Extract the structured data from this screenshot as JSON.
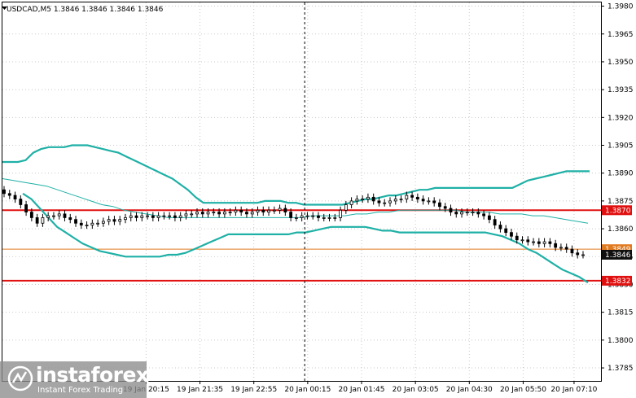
{
  "header": {
    "symbol_line": "USDCAD,M5  1.3846 1.3846 1.3846 1.3846"
  },
  "watermark": {
    "brand": "instaforex",
    "tagline": "Instant Forex Trading"
  },
  "colors": {
    "band": "#1fb0a6",
    "mid": "#1fb0a6",
    "level_line": "#e01010",
    "price_line": "#e07a20",
    "price_tag_bg": "#101010",
    "candles": "#000000"
  },
  "chart_data": {
    "type": "candlestick",
    "symbol": "USDCAD",
    "timeframe": "M5",
    "ylim": [
      1.3778,
      1.3982
    ],
    "y_ticks": [
      "1.3980",
      "1.3965",
      "1.3950",
      "1.3935",
      "1.3920",
      "1.3905",
      "1.3890",
      "1.3875",
      "1.3860",
      "1.3845",
      "1.3830",
      "1.3815",
      "1.3800",
      "1.3785"
    ],
    "y_tick_values": [
      1.398,
      1.3965,
      1.395,
      1.3935,
      1.392,
      1.3905,
      1.389,
      1.3875,
      1.386,
      1.3845,
      1.383,
      1.3815,
      1.38,
      1.3785
    ],
    "x_ticks": [
      "19 Jan 20:15",
      "19 Jan 21:35",
      "19 Jan 22:55",
      "20 Jan 00:15",
      "20 Jan 01:45",
      "20 Jan 03:05",
      "20 Jan 04:30",
      "20 Jan 05:50",
      "20 Jan 07:10"
    ],
    "x_tick_pos": [
      0.24,
      0.33,
      0.42,
      0.51,
      0.6,
      0.69,
      0.78,
      0.87,
      0.955
    ],
    "levels": [
      {
        "value": 1.387,
        "label": "1.3870",
        "kind": "resistance"
      },
      {
        "value": 1.3832,
        "label": "1.3832",
        "kind": "support"
      }
    ],
    "price_line": {
      "value": 1.3849,
      "label": "1.3849"
    },
    "current_price": {
      "value": 1.3846,
      "label": "1.3846"
    },
    "vertical_separator_pos": 0.505,
    "close": [
      1.3879,
      1.3878,
      1.3876,
      1.3873,
      1.3869,
      1.3866,
      1.3863,
      1.3866,
      1.3867,
      1.3867,
      1.3868,
      1.3866,
      1.3865,
      1.3863,
      1.3862,
      1.3862,
      1.3863,
      1.3863,
      1.3864,
      1.3865,
      1.3864,
      1.3865,
      1.3866,
      1.3867,
      1.3866,
      1.3867,
      1.3867,
      1.3866,
      1.3867,
      1.3867,
      1.3867,
      1.3866,
      1.3867,
      1.3868,
      1.3868,
      1.3869,
      1.3868,
      1.3869,
      1.3869,
      1.3868,
      1.3869,
      1.3869,
      1.387,
      1.3869,
      1.3868,
      1.3869,
      1.387,
      1.3869,
      1.387,
      1.387,
      1.3871,
      1.3869,
      1.3866,
      1.3866,
      1.3867,
      1.3867,
      1.3867,
      1.3866,
      1.3866,
      1.3866,
      1.3866,
      1.387,
      1.3873,
      1.3875,
      1.3876,
      1.3876,
      1.3877,
      1.3875,
      1.3874,
      1.3874,
      1.3875,
      1.3876,
      1.3876,
      1.3878,
      1.3877,
      1.3876,
      1.3875,
      1.3875,
      1.3874,
      1.3872,
      1.3871,
      1.3869,
      1.3868,
      1.3869,
      1.3869,
      1.3869,
      1.3868,
      1.3867,
      1.3865,
      1.3862,
      1.386,
      1.3858,
      1.3856,
      1.3854,
      1.3854,
      1.3853,
      1.3853,
      1.3852,
      1.3853,
      1.3852,
      1.385,
      1.385,
      1.3849,
      1.3847,
      1.3846,
      1.3846
    ],
    "upper_band": [
      1.3896,
      1.3896,
      1.3896,
      1.3897,
      1.3901,
      1.3903,
      1.3904,
      1.3904,
      1.3904,
      1.3905,
      1.3905,
      1.3905,
      1.3904,
      1.3903,
      1.3902,
      1.3901,
      1.3899,
      1.3897,
      1.3895,
      1.3893,
      1.3891,
      1.3889,
      1.3887,
      1.3884,
      1.3881,
      1.3877,
      1.3874,
      1.3874,
      1.3874,
      1.3874,
      1.3874,
      1.3874,
      1.3874,
      1.3874,
      1.3875,
      1.3875,
      1.3875,
      1.3874,
      1.3874,
      1.3873,
      1.3873,
      1.3873,
      1.3873,
      1.3873,
      1.3873,
      1.3874,
      1.3875,
      1.3876,
      1.3876,
      1.3877,
      1.3878,
      1.3878,
      1.3879,
      1.388,
      1.3881,
      1.3881,
      1.3882,
      1.3882,
      1.3882,
      1.3882,
      1.3882,
      1.3882,
      1.3882,
      1.3882,
      1.3882,
      1.3882,
      1.3882,
      1.3884,
      1.3886,
      1.3887,
      1.3888,
      1.3889,
      1.389,
      1.3891,
      1.3891,
      1.3891,
      1.3891
    ],
    "lower_band": [
      1.3879,
      1.3876,
      1.3871,
      1.3866,
      1.3861,
      1.3858,
      1.3855,
      1.3852,
      1.385,
      1.3848,
      1.3847,
      1.3846,
      1.3845,
      1.3845,
      1.3845,
      1.3845,
      1.3845,
      1.3846,
      1.3846,
      1.3847,
      1.3849,
      1.3851,
      1.3853,
      1.3855,
      1.3857,
      1.3857,
      1.3857,
      1.3857,
      1.3857,
      1.3857,
      1.3857,
      1.3857,
      1.3858,
      1.3858,
      1.3859,
      1.386,
      1.3861,
      1.3861,
      1.3861,
      1.3861,
      1.3861,
      1.386,
      1.3859,
      1.3859,
      1.3858,
      1.3858,
      1.3858,
      1.3858,
      1.3858,
      1.3858,
      1.3858,
      1.3858,
      1.3858,
      1.3858,
      1.3858,
      1.3857,
      1.3856,
      1.3854,
      1.3852,
      1.3849,
      1.3847,
      1.3844,
      1.3841,
      1.3838,
      1.3836,
      1.3834,
      1.3831
    ],
    "middle_band": [
      1.3887,
      1.3886,
      1.3885,
      1.3884,
      1.3883,
      1.3881,
      1.3879,
      1.3877,
      1.3875,
      1.3873,
      1.3872,
      1.387,
      1.3869,
      1.3868,
      1.3867,
      1.3866,
      1.3866,
      1.3866,
      1.3866,
      1.3866,
      1.3866,
      1.3866,
      1.3866,
      1.3866,
      1.3866,
      1.3866,
      1.3866,
      1.3866,
      1.3867,
      1.3867,
      1.3867,
      1.3867,
      1.3868,
      1.3868,
      1.3869,
      1.3869,
      1.387,
      1.387,
      1.387,
      1.387,
      1.387,
      1.387,
      1.3869,
      1.3869,
      1.3869,
      1.3868,
      1.3868,
      1.3868,
      1.3867,
      1.3867,
      1.3866,
      1.3865,
      1.3864,
      1.3863
    ]
  }
}
